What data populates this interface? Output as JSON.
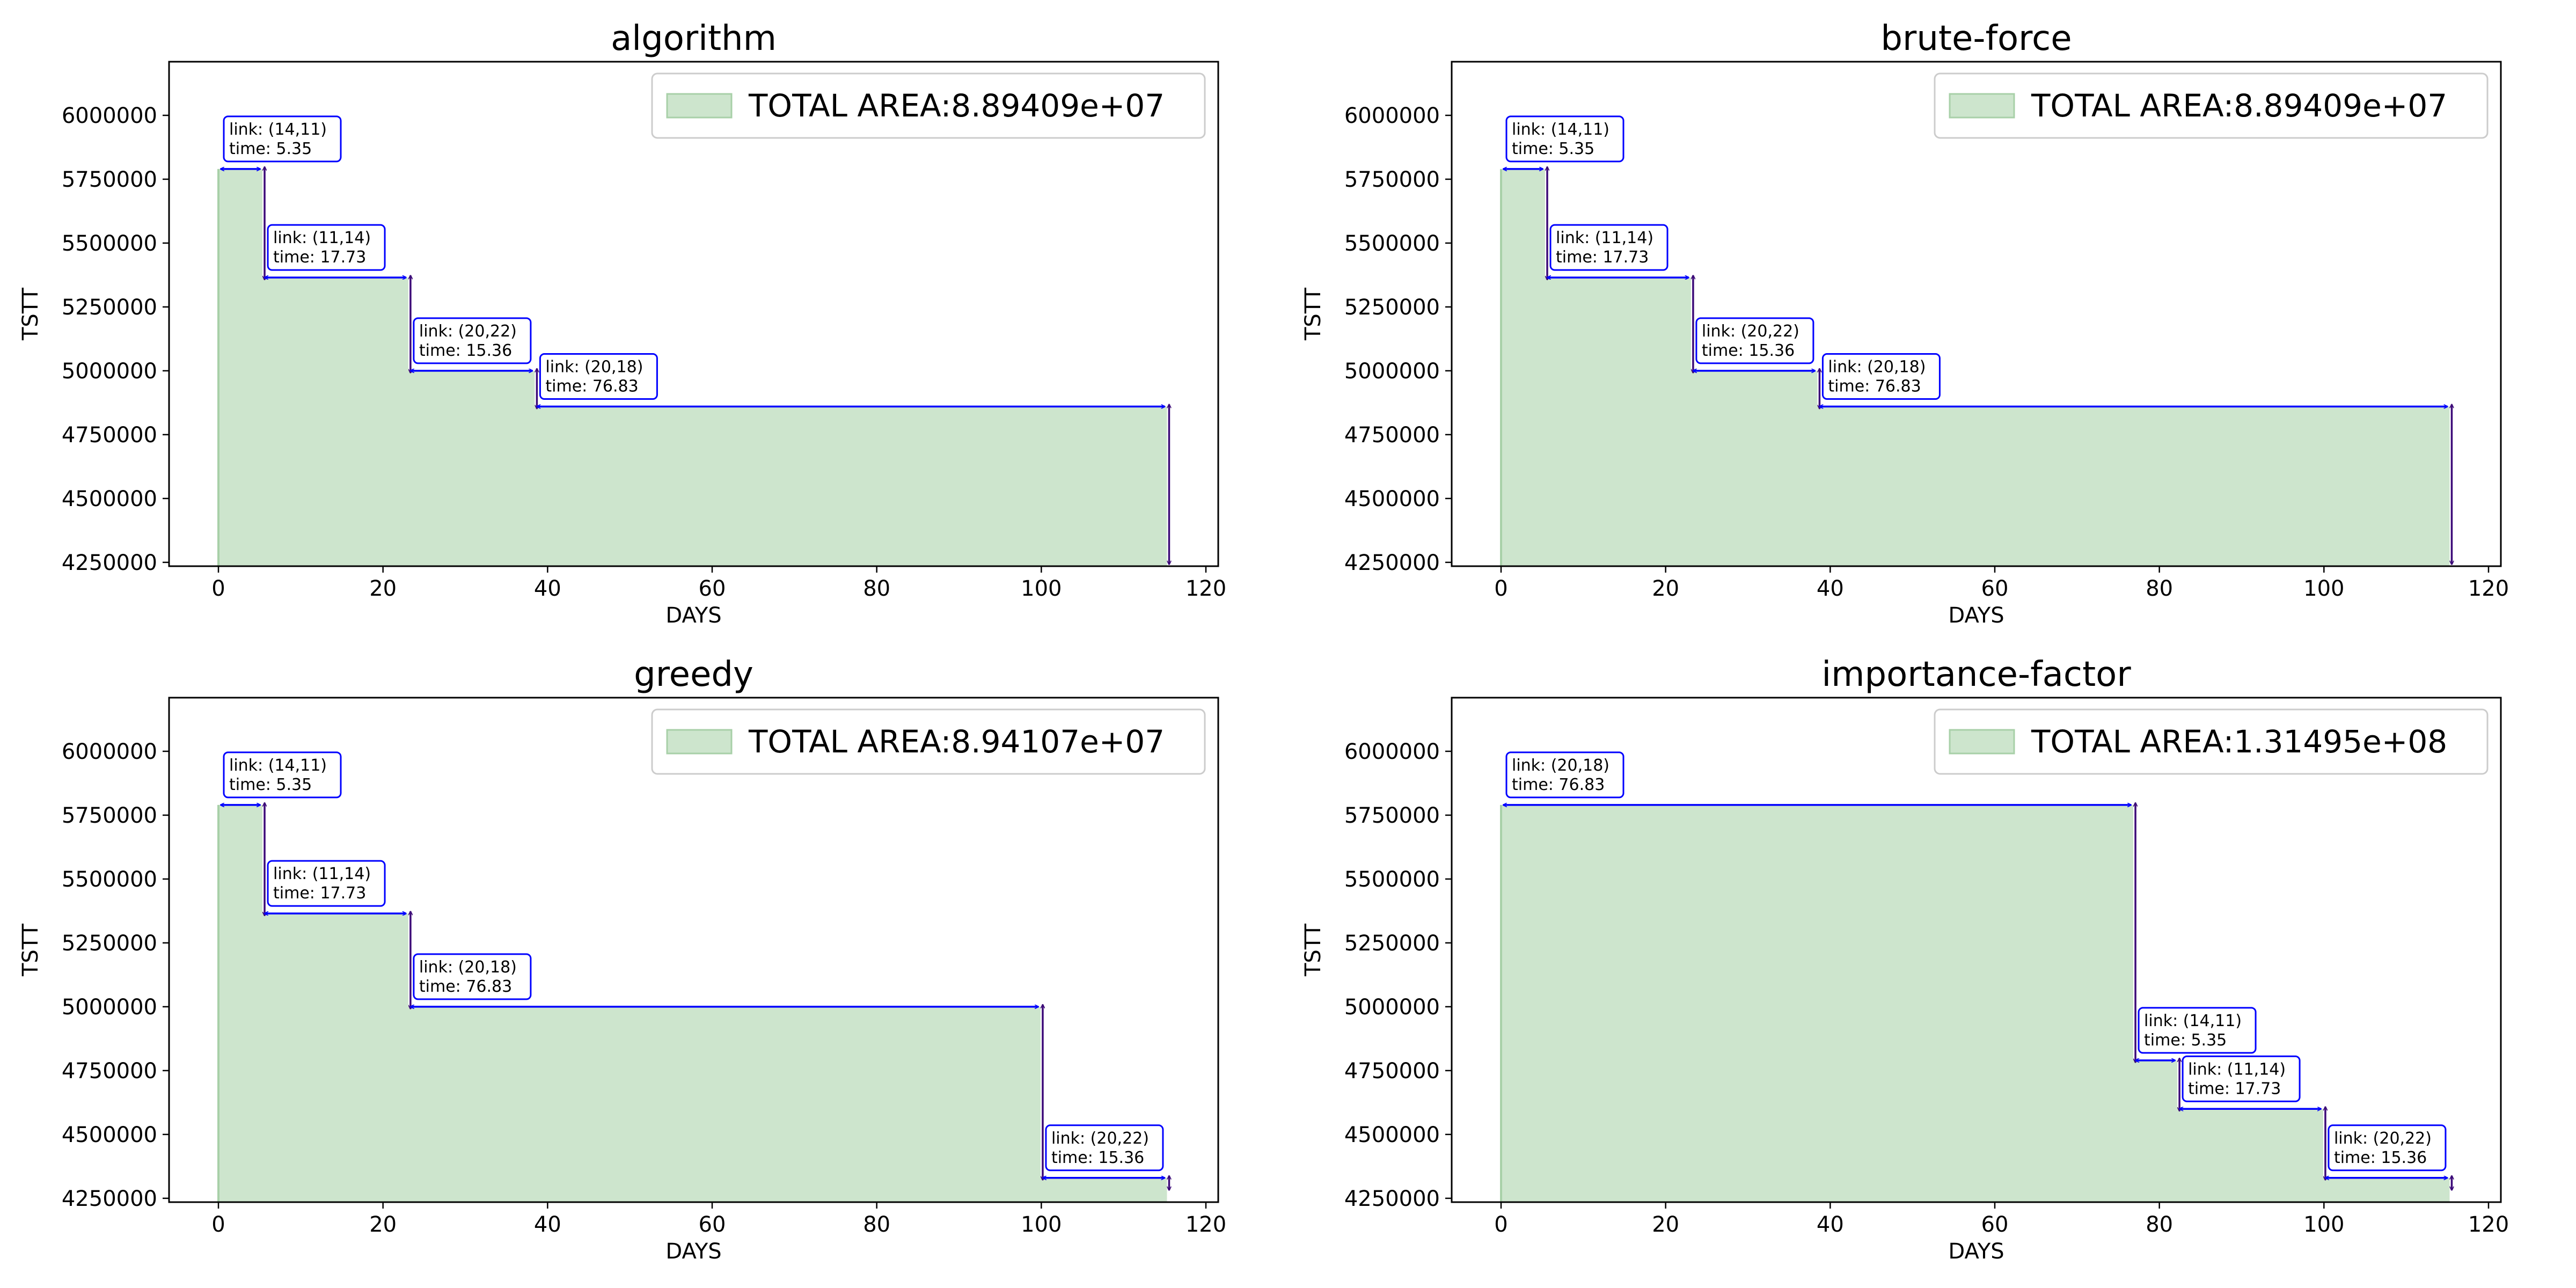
{
  "chart_data": [
    {
      "type": "area",
      "title": "algorithm",
      "xlabel": "DAYS",
      "ylabel": "TSTT",
      "xlim": [
        -6,
        121.5
      ],
      "ylim": [
        4235000,
        6210000
      ],
      "xticks": [
        0,
        20,
        40,
        60,
        80,
        100,
        120
      ],
      "yticks": [
        4250000,
        4500000,
        4750000,
        5000000,
        5250000,
        5500000,
        5750000,
        6000000
      ],
      "legend": "TOTAL AREA:8.89409e+07",
      "legend_position": "top-right",
      "grid": false,
      "colors": {
        "fill": "#cde5cd",
        "edge": "#a8d0a8",
        "hline": "#0000ff",
        "vline": "#3c0a78",
        "box": "#0000ff"
      },
      "end_value": 4250000,
      "steps": [
        {
          "link": "link: (14,11)",
          "time": "time: 5.35",
          "start": 0,
          "end": 5.35,
          "tstt": 5790000
        },
        {
          "link": "link: (11,14)",
          "time": "time: 17.73",
          "start": 5.35,
          "end": 23.08,
          "tstt": 5365000
        },
        {
          "link": "link: (20,22)",
          "time": "time: 15.36",
          "start": 23.08,
          "end": 38.44,
          "tstt": 5000000
        },
        {
          "link": "link: (20,18)",
          "time": "time: 76.83",
          "start": 38.44,
          "end": 115.27,
          "tstt": 4860000
        }
      ]
    },
    {
      "type": "area",
      "title": "brute-force",
      "xlabel": "DAYS",
      "ylabel": "TSTT",
      "xlim": [
        -6,
        121.5
      ],
      "ylim": [
        4235000,
        6210000
      ],
      "xticks": [
        0,
        20,
        40,
        60,
        80,
        100,
        120
      ],
      "yticks": [
        4250000,
        4500000,
        4750000,
        5000000,
        5250000,
        5500000,
        5750000,
        6000000
      ],
      "legend": "TOTAL AREA:8.89409e+07",
      "legend_position": "top-right",
      "grid": false,
      "colors": {
        "fill": "#cde5cd",
        "edge": "#a8d0a8",
        "hline": "#0000ff",
        "vline": "#3c0a78",
        "box": "#0000ff"
      },
      "end_value": 4250000,
      "steps": [
        {
          "link": "link: (14,11)",
          "time": "time: 5.35",
          "start": 0,
          "end": 5.35,
          "tstt": 5790000
        },
        {
          "link": "link: (11,14)",
          "time": "time: 17.73",
          "start": 5.35,
          "end": 23.08,
          "tstt": 5365000
        },
        {
          "link": "link: (20,22)",
          "time": "time: 15.36",
          "start": 23.08,
          "end": 38.44,
          "tstt": 5000000
        },
        {
          "link": "link: (20,18)",
          "time": "time: 76.83",
          "start": 38.44,
          "end": 115.27,
          "tstt": 4860000
        }
      ]
    },
    {
      "type": "area",
      "title": "greedy",
      "xlabel": "DAYS",
      "ylabel": "TSTT",
      "xlim": [
        -6,
        121.5
      ],
      "ylim": [
        4235000,
        6210000
      ],
      "xticks": [
        0,
        20,
        40,
        60,
        80,
        100,
        120
      ],
      "yticks": [
        4250000,
        4500000,
        4750000,
        5000000,
        5250000,
        5500000,
        5750000,
        6000000
      ],
      "legend": "TOTAL AREA:8.94107e+07",
      "legend_position": "top-right",
      "grid": false,
      "colors": {
        "fill": "#cde5cd",
        "edge": "#a8d0a8",
        "hline": "#0000ff",
        "vline": "#3c0a78",
        "box": "#0000ff"
      },
      "end_value": 4290000,
      "steps": [
        {
          "link": "link: (14,11)",
          "time": "time: 5.35",
          "start": 0,
          "end": 5.35,
          "tstt": 5790000
        },
        {
          "link": "link: (11,14)",
          "time": "time: 17.73",
          "start": 5.35,
          "end": 23.08,
          "tstt": 5365000
        },
        {
          "link": "link: (20,18)",
          "time": "time: 76.83",
          "start": 23.08,
          "end": 99.91,
          "tstt": 5000000
        },
        {
          "link": "link: (20,22)",
          "time": "time: 15.36",
          "start": 99.91,
          "end": 115.27,
          "tstt": 4330000
        }
      ]
    },
    {
      "type": "area",
      "title": "importance-factor",
      "xlabel": "DAYS",
      "ylabel": "TSTT",
      "xlim": [
        -6,
        121.5
      ],
      "ylim": [
        4235000,
        6210000
      ],
      "xticks": [
        0,
        20,
        40,
        60,
        80,
        100,
        120
      ],
      "yticks": [
        4250000,
        4500000,
        4750000,
        5000000,
        5250000,
        5500000,
        5750000,
        6000000
      ],
      "legend": "TOTAL AREA:1.31495e+08",
      "legend_position": "top-right",
      "grid": false,
      "colors": {
        "fill": "#cde5cd",
        "edge": "#a8d0a8",
        "hline": "#0000ff",
        "vline": "#3c0a78",
        "box": "#0000ff"
      },
      "end_value": 4290000,
      "steps": [
        {
          "link": "link: (20,18)",
          "time": "time: 76.83",
          "start": 0,
          "end": 76.83,
          "tstt": 5790000
        },
        {
          "link": "link: (14,11)",
          "time": "time: 5.35",
          "start": 76.83,
          "end": 82.18,
          "tstt": 4790000
        },
        {
          "link": "link: (11,14)",
          "time": "time: 17.73",
          "start": 82.18,
          "end": 99.91,
          "tstt": 4600000
        },
        {
          "link": "link: (20,22)",
          "time": "time: 15.36",
          "start": 99.91,
          "end": 115.27,
          "tstt": 4330000
        }
      ]
    }
  ]
}
